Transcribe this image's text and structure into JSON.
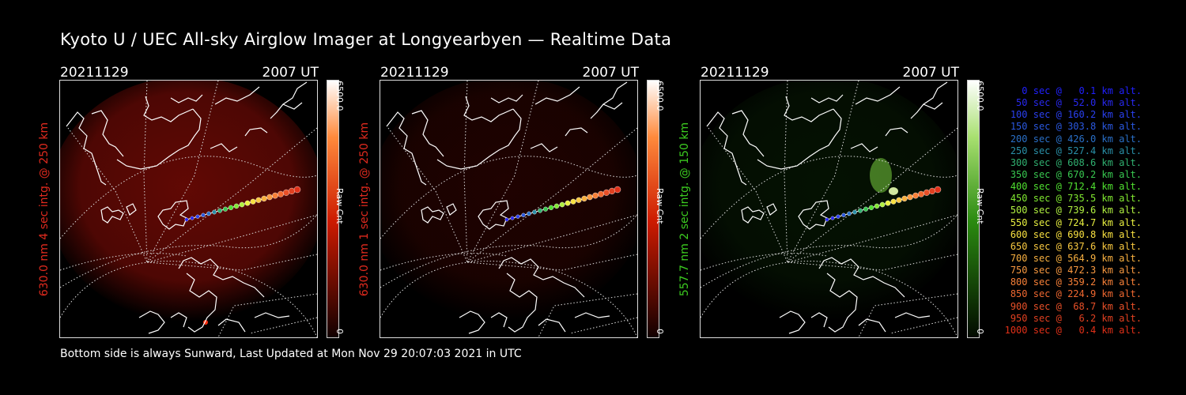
{
  "title": "Kyoto U / UEC All-sky Airglow Imager at Longyearbyen — Realtime Data",
  "footer": "Bottom side is always Sunward, Last Updated at Mon Nov 29 20:07:03 2021 in UTC",
  "panels": [
    {
      "date": "20211129",
      "time": "2007 UT",
      "side_label": "630.0 nm 4 sec intg. @ 250 km",
      "label_color": "#e02a1e",
      "cbar_max": "6500.0",
      "cbar_min": "0",
      "cbar_unit": "Raw Cnt",
      "cbar_top": "#ffffff",
      "cbar_mid": "#ff8a3c",
      "cbar_low": "#cc1a00",
      "cbar_bottom": "#120000",
      "emission_color": "#b01008",
      "emission_level": 0.55
    },
    {
      "date": "20211129",
      "time": "2007 UT",
      "side_label": "630.0 nm 1 sec intg. @ 250 km",
      "label_color": "#e02a1e",
      "cbar_max": "6500.0",
      "cbar_min": "0",
      "cbar_unit": "Raw Cnt",
      "cbar_top": "#ffffff",
      "cbar_mid": "#ff8a3c",
      "cbar_low": "#cc1a00",
      "cbar_bottom": "#120000",
      "emission_color": "#5a0602",
      "emission_level": 0.35
    },
    {
      "date": "20211129",
      "time": "2007 UT",
      "side_label": "557.7 nm 2 sec intg. @ 150 km",
      "label_color": "#3ccc20",
      "cbar_max": "6500.0",
      "cbar_min": "0",
      "cbar_unit": "Raw Cnt",
      "cbar_top": "#ffffff",
      "cbar_mid": "#a8e070",
      "cbar_low": "#2a8a10",
      "cbar_bottom": "#020a00",
      "emission_color": "#0f3a08",
      "emission_level": 0.3
    }
  ],
  "trajectory_legend": [
    {
      "label": "   0 sec @   0.1 km alt.",
      "color": "#2020ff"
    },
    {
      "label": "  50 sec @  52.0 km alt.",
      "color": "#2828f0"
    },
    {
      "label": " 100 sec @ 160.2 km alt.",
      "color": "#2a40f0"
    },
    {
      "label": " 150 sec @ 303.8 km alt.",
      "color": "#2a58e0"
    },
    {
      "label": " 200 sec @ 426.0 km alt.",
      "color": "#2a70c8"
    },
    {
      "label": " 250 sec @ 527.4 km alt.",
      "color": "#2a90a8"
    },
    {
      "label": " 300 sec @ 608.6 km alt.",
      "color": "#30b070"
    },
    {
      "label": " 350 sec @ 670.2 km alt.",
      "color": "#38c850"
    },
    {
      "label": " 400 sec @ 712.4 km alt.",
      "color": "#50e030"
    },
    {
      "label": " 450 sec @ 735.5 km alt.",
      "color": "#80e830"
    },
    {
      "label": " 500 sec @ 739.6 km alt.",
      "color": "#b0f040"
    },
    {
      "label": " 550 sec @ 724.7 km alt.",
      "color": "#e8f040"
    },
    {
      "label": " 600 sec @ 690.8 km alt.",
      "color": "#f8e040"
    },
    {
      "label": " 650 sec @ 637.6 km alt.",
      "color": "#f8c840"
    },
    {
      "label": " 700 sec @ 564.9 km alt.",
      "color": "#f8b040"
    },
    {
      "label": " 750 sec @ 472.3 km alt.",
      "color": "#f89840"
    },
    {
      "label": " 800 sec @ 359.2 km alt.",
      "color": "#f88038"
    },
    {
      "label": " 850 sec @ 224.9 km alt.",
      "color": "#f06830"
    },
    {
      "label": " 900 sec @  68.7 km alt.",
      "color": "#e85028"
    },
    {
      "label": " 950 sec @   6.2 km alt.",
      "color": "#e04020"
    },
    {
      "label": "1000 sec @   0.4 km alt.",
      "color": "#e03018"
    }
  ]
}
